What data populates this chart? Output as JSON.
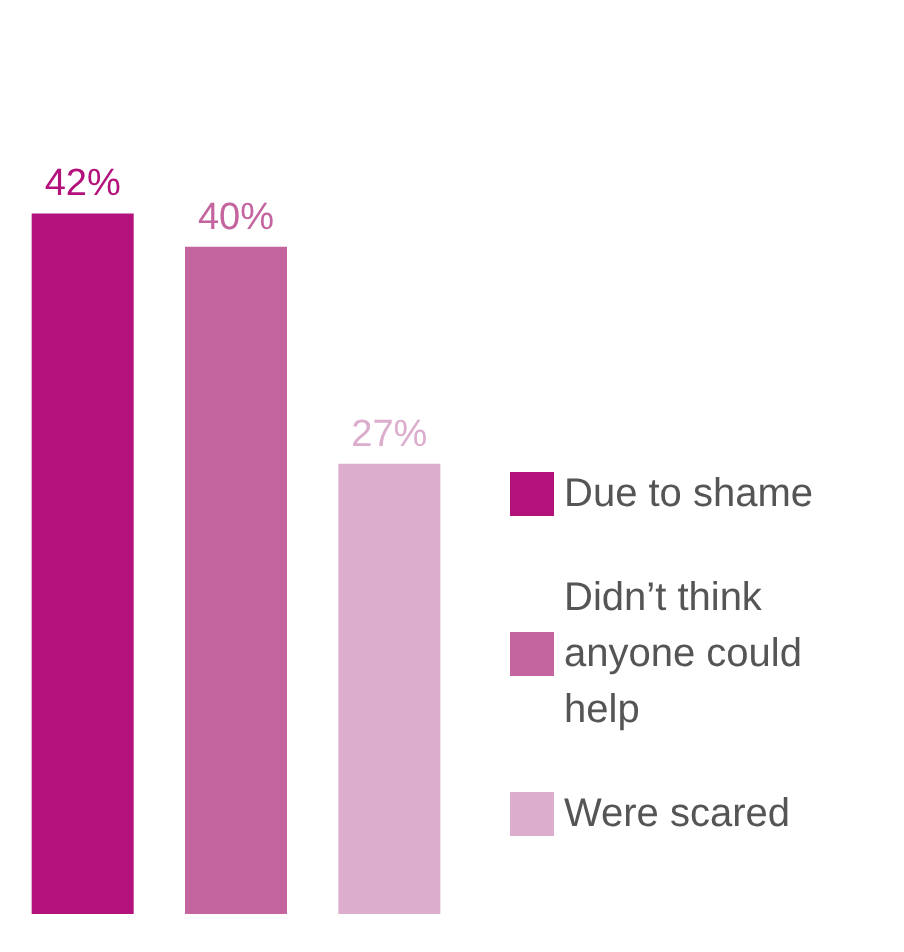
{
  "chart_data": {
    "type": "bar",
    "categories": [
      null,
      null,
      null
    ],
    "series": [
      {
        "name": "Due to shame",
        "color": "#b3127c",
        "values": [
          42,
          null,
          null
        ],
        "value_labels": [
          "42%",
          null,
          null
        ]
      },
      {
        "name": "Didn’t think anyone could help",
        "color": "#c4659f",
        "values": [
          null,
          40,
          null
        ],
        "value_labels": [
          null,
          "40%",
          null
        ]
      },
      {
        "name": "Were scared",
        "color": "#dcadcd",
        "values": [
          null,
          null,
          27
        ],
        "value_labels": [
          null,
          null,
          "27%"
        ]
      }
    ],
    "stacked": true,
    "legend": "right"
  }
}
